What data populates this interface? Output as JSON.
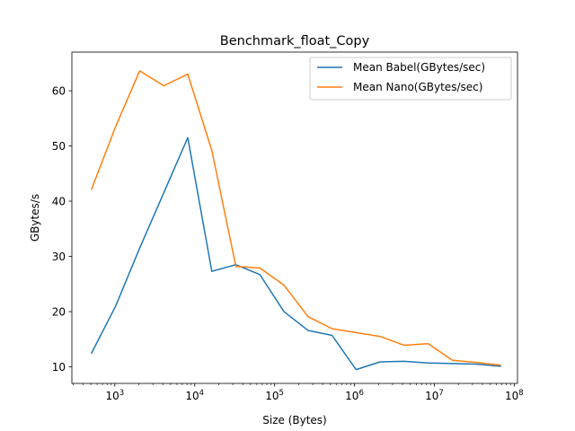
{
  "chart_data": {
    "type": "line",
    "title": "Benchmark_float_Copy",
    "xlabel": "Size (Bytes)",
    "ylabel": "GBytes/s",
    "xscale": "log",
    "xlim": [
      290,
      110000000
    ],
    "ylim": [
      7,
      67
    ],
    "x_tick_labels": [
      {
        "value": 1000,
        "base": "10",
        "exp": "3"
      },
      {
        "value": 10000,
        "base": "10",
        "exp": "4"
      },
      {
        "value": 100000,
        "base": "10",
        "exp": "5"
      },
      {
        "value": 1000000,
        "base": "10",
        "exp": "6"
      },
      {
        "value": 10000000,
        "base": "10",
        "exp": "7"
      },
      {
        "value": 100000000,
        "base": "10",
        "exp": "8"
      }
    ],
    "y_tick_labels": [
      {
        "value": 10,
        "label": "10"
      },
      {
        "value": 20,
        "label": "20"
      },
      {
        "value": 30,
        "label": "30"
      },
      {
        "value": 40,
        "label": "40"
      },
      {
        "value": 50,
        "label": "50"
      },
      {
        "value": 60,
        "label": "60"
      }
    ],
    "x": [
      512,
      1024,
      2048,
      4096,
      8192,
      16384,
      32768,
      65536,
      131072,
      262144,
      524288,
      1048576,
      2097152,
      4194304,
      8388608,
      16777216,
      33554432,
      67108864
    ],
    "series": [
      {
        "name": "Mean Babel(GBytes/sec)",
        "color": "#1f77b4",
        "values": [
          12.5,
          21.0,
          31.5,
          41.5,
          51.5,
          27.3,
          28.5,
          26.7,
          20.0,
          16.6,
          15.7,
          9.5,
          10.9,
          11.0,
          10.7,
          10.6,
          10.5,
          10.1
        ]
      },
      {
        "name": "Mean Nano(GBytes/sec)",
        "color": "#ff7f0e",
        "values": [
          42.2,
          53.5,
          63.6,
          60.9,
          63.0,
          49.2,
          28.2,
          27.9,
          24.8,
          19.1,
          16.9,
          16.2,
          15.5,
          13.9,
          14.2,
          11.2,
          10.8,
          10.3
        ]
      }
    ],
    "grid": false,
    "legend_position": "upper right"
  }
}
